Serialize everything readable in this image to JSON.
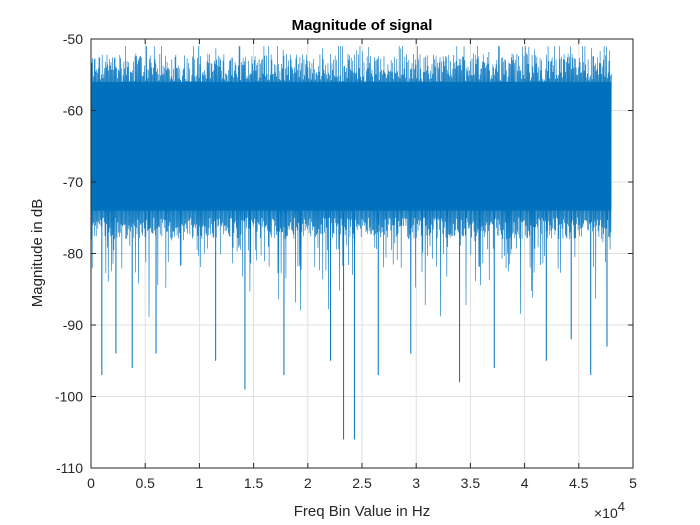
{
  "chart_data": {
    "type": "line",
    "title": "Magnitude of signal",
    "xlabel": "Freq Bin Value in Hz",
    "ylabel": "Magnitude in dB",
    "x_exponent_base": "×10",
    "x_exponent_power": "4",
    "xlim": [
      0,
      50000
    ],
    "ylim": [
      -110,
      -50
    ],
    "x_ticks": [
      0,
      5000,
      10000,
      15000,
      20000,
      25000,
      30000,
      35000,
      40000,
      45000,
      50000
    ],
    "x_tick_labels": [
      "0",
      "0.5",
      "1",
      "1.5",
      "2",
      "2.5",
      "3",
      "3.5",
      "4",
      "4.5",
      "5"
    ],
    "y_ticks": [
      -110,
      -100,
      -90,
      -80,
      -70,
      -60,
      -50
    ],
    "y_tick_labels": [
      "-110",
      "-100",
      "-90",
      "-80",
      "-70",
      "-60",
      "-50"
    ],
    "grid": true,
    "series": [
      {
        "color": "#0072BD",
        "x_range": [
          0,
          48000
        ],
        "band_typical": [
          -78,
          -54
        ],
        "band_extreme": [
          -106,
          -51
        ],
        "notable_points": [
          {
            "x": 1000,
            "y": -97
          },
          {
            "x": 2300,
            "y": -94
          },
          {
            "x": 3800,
            "y": -96
          },
          {
            "x": 5100,
            "y": -51
          },
          {
            "x": 6000,
            "y": -94
          },
          {
            "x": 11500,
            "y": -95
          },
          {
            "x": 14200,
            "y": -99
          },
          {
            "x": 17800,
            "y": -97
          },
          {
            "x": 22100,
            "y": -95
          },
          {
            "x": 23300,
            "y": -106
          },
          {
            "x": 24300,
            "y": -106
          },
          {
            "x": 26500,
            "y": -97
          },
          {
            "x": 29500,
            "y": -94
          },
          {
            "x": 34000,
            "y": -98
          },
          {
            "x": 37200,
            "y": -96
          },
          {
            "x": 42000,
            "y": -95
          },
          {
            "x": 44300,
            "y": -92
          },
          {
            "x": 46100,
            "y": -97
          },
          {
            "x": 47600,
            "y": -93
          }
        ]
      }
    ]
  }
}
